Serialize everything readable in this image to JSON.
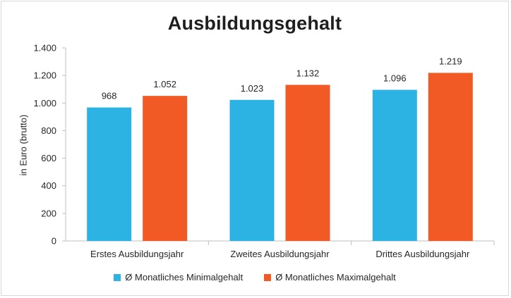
{
  "chart_data": {
    "type": "bar",
    "title": "Ausbildungsgehalt",
    "ylabel": "in Euro (brutto)",
    "xlabel": "",
    "ylim": [
      0,
      1400
    ],
    "yticks": [
      0,
      200,
      400,
      600,
      800,
      1000,
      1200,
      1400
    ],
    "ytick_labels": [
      "0",
      "200",
      "400",
      "600",
      "800",
      "1.000",
      "1.200",
      "1.400"
    ],
    "categories": [
      "Erstes Ausbildungsjahr",
      "Zweites Ausbildungsjahr",
      "Drittes Ausbildungsjahr"
    ],
    "series": [
      {
        "name": "Ø Monatliches Minimalgehalt",
        "color": "#2db3e3",
        "values": [
          968,
          1023,
          1096
        ],
        "labels": [
          "968",
          "1.023",
          "1.096"
        ]
      },
      {
        "name": "Ø Monatliches Maximalgehalt",
        "color": "#f15a24",
        "values": [
          1052,
          1132,
          1219
        ],
        "labels": [
          "1.052",
          "1.132",
          "1.219"
        ]
      }
    ],
    "legend_position": "bottom",
    "grid": false
  }
}
